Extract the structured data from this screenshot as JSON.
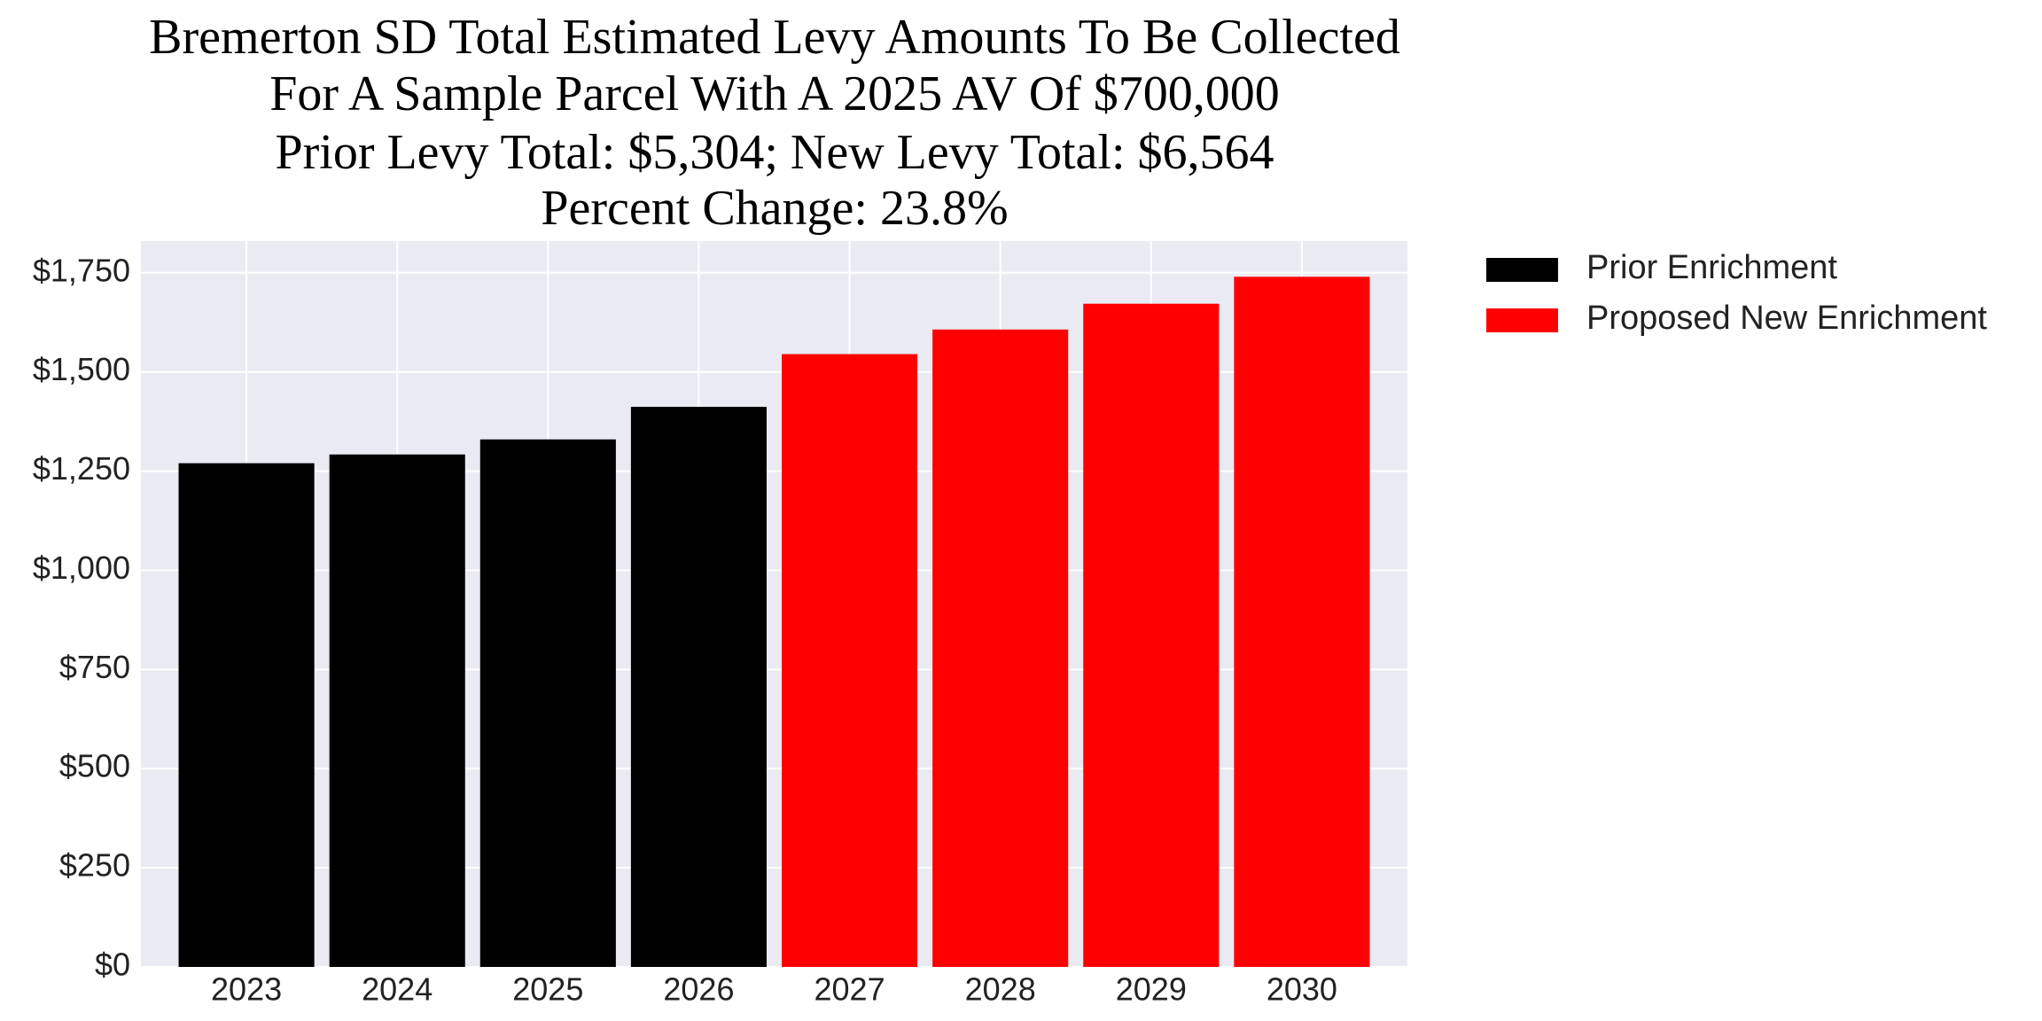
{
  "chart_data": {
    "type": "bar",
    "title": [
      "Bremerton SD Total Estimated Levy Amounts To Be Collected",
      "For A Sample Parcel With A 2025 AV Of $700,000",
      "Prior Levy Total:  $5,304; New Levy Total: $6,564",
      "Percent Change: 23.8%"
    ],
    "categories": [
      "2023",
      "2024",
      "2025",
      "2026",
      "2027",
      "2028",
      "2029",
      "2030"
    ],
    "series": [
      {
        "name": "Prior Enrichment",
        "color": "#000000",
        "values": [
          1270,
          1292,
          1330,
          1412,
          null,
          null,
          null,
          null
        ]
      },
      {
        "name": "Proposed New Enrichment",
        "color": "#ff0000",
        "values": [
          null,
          null,
          null,
          null,
          1545,
          1607,
          1672,
          1740
        ]
      }
    ],
    "ylim": [
      0,
      1830
    ],
    "yticks": [
      {
        "value": 0,
        "label": "$0"
      },
      {
        "value": 250,
        "label": "$250"
      },
      {
        "value": 500,
        "label": "$500"
      },
      {
        "value": 750,
        "label": "$750"
      },
      {
        "value": 1000,
        "label": "$1,000"
      },
      {
        "value": 1250,
        "label": "$1,250"
      },
      {
        "value": 1500,
        "label": "$1,500"
      },
      {
        "value": 1750,
        "label": "$1,750"
      }
    ],
    "grid": true,
    "legend": "outside right"
  }
}
